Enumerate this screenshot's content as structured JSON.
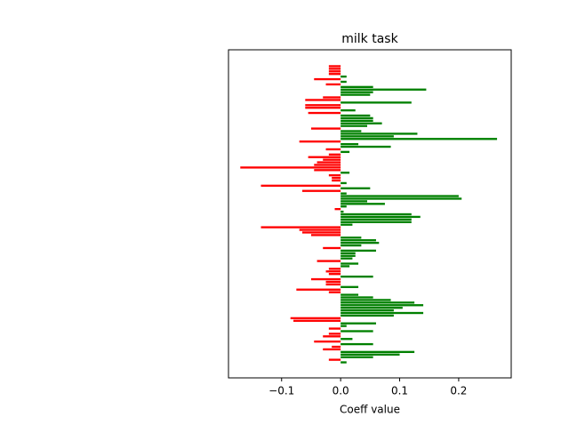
{
  "chart_data": {
    "type": "barh",
    "title": "milk task",
    "x_label": "Coeff value",
    "values": [
      -0.02,
      -0.02,
      -0.02,
      -0.02,
      0.01,
      -0.045,
      0.01,
      -0.025,
      0.055,
      0.145,
      0.055,
      0.05,
      -0.03,
      -0.06,
      0.12,
      -0.06,
      -0.06,
      0.025,
      -0.055,
      0.05,
      0.055,
      0.055,
      0.07,
      0.045,
      -0.05,
      0.035,
      0.13,
      0.09,
      0.265,
      -0.07,
      0.03,
      0.085,
      -0.025,
      0.015,
      -0.02,
      -0.055,
      -0.03,
      -0.04,
      -0.045,
      -0.17,
      -0.045,
      0.015,
      -0.02,
      -0.015,
      -0.015,
      0.01,
      -0.135,
      0.05,
      -0.065,
      0.01,
      0.2,
      0.205,
      0.045,
      0.075,
      0.01,
      -0.01,
      0.005,
      0.12,
      0.135,
      0.12,
      0.12,
      0.02,
      -0.135,
      -0.07,
      -0.065,
      -0.05,
      0.035,
      0.06,
      0.065,
      0.035,
      -0.03,
      0.06,
      0.025,
      0.025,
      0.02,
      -0.04,
      0.03,
      0.015,
      -0.02,
      -0.025,
      -0.02,
      0.055,
      -0.05,
      -0.025,
      -0.025,
      0.03,
      -0.075,
      -0.02,
      0.03,
      0.055,
      0.085,
      0.125,
      0.14,
      0.105,
      0.09,
      0.14,
      0.09,
      -0.085,
      -0.08,
      0.06,
      0.01,
      -0.02,
      0.055,
      -0.02,
      -0.03,
      0.02,
      -0.045,
      0.055,
      -0.015,
      -0.03,
      0.125,
      0.1,
      0.055,
      -0.02,
      0.01
    ],
    "positive_color": "#008000",
    "negative_color": "#ff0000",
    "xlim": [
      -0.19,
      0.289
    ],
    "xticks": [
      {
        "value": -0.1,
        "label": "−0.1"
      },
      {
        "value": 0,
        "label": "0.0"
      },
      0.1,
      0.2
    ]
  }
}
